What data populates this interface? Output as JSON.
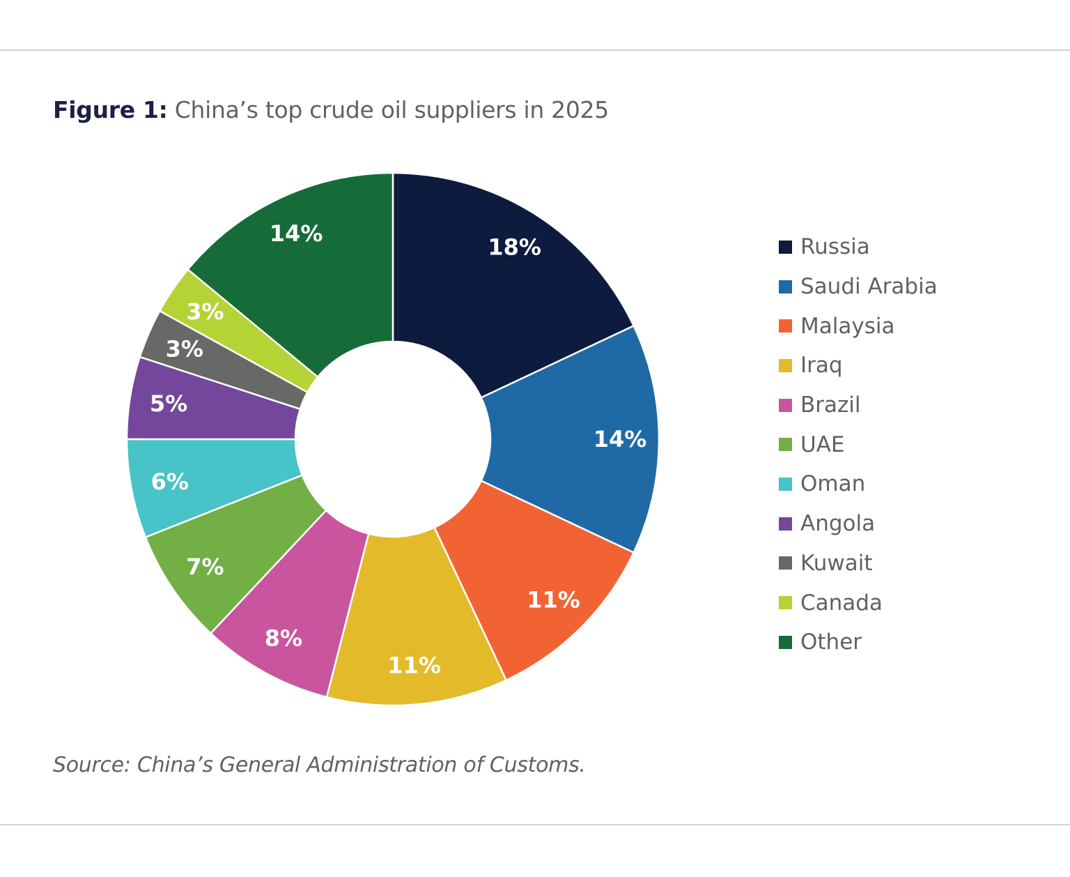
{
  "title": {
    "prefix": "Figure 1:",
    "text": "China’s top crude oil suppliers in 2025"
  },
  "source": "Source: China’s General Administration of Customs.",
  "chart_data": {
    "type": "pie",
    "donut": true,
    "title": "China’s top crude oil suppliers in 2025",
    "unit": "%",
    "legend_position": "right",
    "categories": [
      "Russia",
      "Saudi Arabia",
      "Malaysia",
      "Iraq",
      "Brazil",
      "UAE",
      "Oman",
      "Angola",
      "Kuwait",
      "Canada",
      "Other"
    ],
    "values": [
      18,
      14,
      11,
      11,
      8,
      7,
      6,
      5,
      3,
      3,
      14
    ],
    "labels": [
      "18%",
      "14%",
      "11%",
      "11%",
      "8%",
      "7%",
      "6%",
      "5%",
      "3%",
      "3%",
      "14%"
    ],
    "colors": [
      "#0d1b3e",
      "#1f6aa5",
      "#f26333",
      "#e3bb2a",
      "#c9559f",
      "#72af44",
      "#48c3c8",
      "#74479c",
      "#666966",
      "#b5d334",
      "#166c38"
    ]
  }
}
